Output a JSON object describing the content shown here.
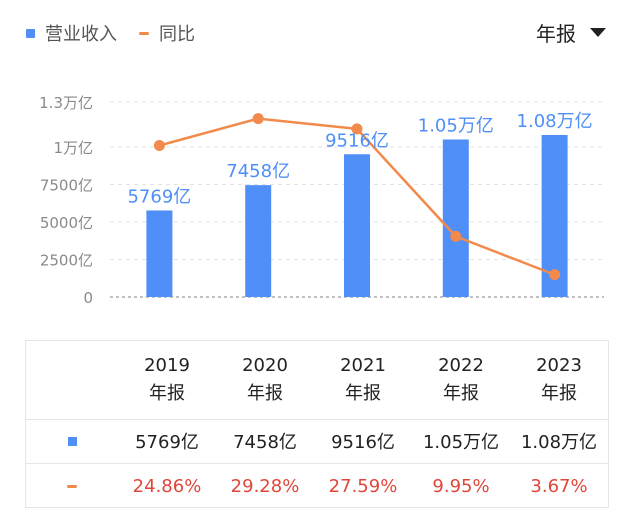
{
  "legend": {
    "revenue_label": "营业收入",
    "yoy_label": "同比"
  },
  "period_select": {
    "value": "年报"
  },
  "chart_data": {
    "type": "bar+line",
    "categories": [
      "2019",
      "2020",
      "2021",
      "2022",
      "2023"
    ],
    "series": [
      {
        "name": "营业收入",
        "type": "bar",
        "unit": "亿",
        "values": [
          5769,
          7458,
          9516,
          10500,
          10800
        ],
        "labels": [
          "5769亿",
          "7458亿",
          "9516亿",
          "1.05万亿",
          "1.08万亿"
        ]
      },
      {
        "name": "同比",
        "type": "line",
        "unit": "%",
        "values": [
          24.86,
          29.28,
          27.59,
          9.95,
          3.67
        ]
      }
    ],
    "yaxis": {
      "ticks": [
        0,
        2500,
        5000,
        7500,
        10000,
        13000
      ],
      "tick_labels": [
        "0",
        "2500亿",
        "5000亿",
        "7500亿",
        "1万亿",
        "1.3万亿"
      ],
      "ylim": [
        0,
        13000
      ]
    },
    "y2_range": [
      0,
      32
    ],
    "colors": {
      "bar": "#4f8ff7",
      "line": "#f28a4b",
      "label": "#4f8ff7",
      "negative_text": "#e0463a"
    }
  },
  "table": {
    "headers": [
      {
        "year": "2019",
        "type": "年报"
      },
      {
        "year": "2020",
        "type": "年报"
      },
      {
        "year": "2021",
        "type": "年报"
      },
      {
        "year": "2022",
        "type": "年报"
      },
      {
        "year": "2023",
        "type": "年报"
      }
    ],
    "revenue": [
      "5769亿",
      "7458亿",
      "9516亿",
      "1.05万亿",
      "1.08万亿"
    ],
    "yoy": [
      "24.86%",
      "29.28%",
      "27.59%",
      "9.95%",
      "3.67%"
    ]
  }
}
